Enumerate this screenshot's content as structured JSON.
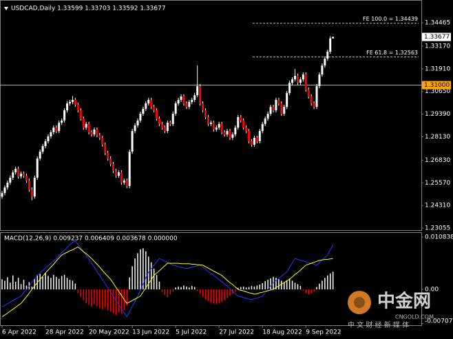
{
  "chart_data": [
    {
      "type": "candlestick",
      "title": "USDCAD,Daily  1.33599 1.33703 1.33592 1.33677",
      "categories": [
        "6 Apr 2022",
        null,
        null,
        null,
        null,
        null,
        null,
        null,
        null,
        null,
        null,
        null,
        null,
        null,
        null,
        null,
        "28 Apr 2022",
        null,
        null,
        null,
        null,
        null,
        null,
        null,
        null,
        null,
        null,
        null,
        null,
        null,
        null,
        null,
        "20 May 2022",
        null,
        null,
        null,
        null,
        null,
        null,
        null,
        null,
        null,
        null,
        null,
        null,
        null,
        null,
        null,
        "13 Jun 2022",
        null,
        null,
        null,
        null,
        null,
        null,
        null,
        null,
        null,
        null,
        null,
        null,
        null,
        null,
        null,
        "5 Jul 2022",
        null,
        null,
        null,
        null,
        null,
        null,
        null,
        null,
        null,
        null,
        null,
        null,
        null,
        null,
        null,
        "27 Jul 2022",
        null,
        null,
        null,
        null,
        null,
        null,
        null,
        null,
        null,
        null,
        null,
        null,
        null,
        null,
        null,
        "18 Aug 2022",
        null,
        null,
        null,
        null,
        null,
        null,
        null,
        null,
        null,
        null,
        null,
        null,
        null,
        null,
        null,
        "9 Sep 2022",
        null,
        null,
        null,
        null,
        null,
        null,
        null,
        null,
        null,
        null
      ],
      "open": [
        1.248,
        1.25,
        1.2531,
        1.2558,
        1.2585,
        1.2615,
        1.2635,
        1.2592,
        1.2608,
        1.2596,
        1.2569,
        1.252,
        1.2481,
        1.2585,
        1.2692,
        1.273,
        1.2761,
        1.2788,
        1.2815,
        1.2838,
        1.2864,
        1.2845,
        1.2891,
        1.2903,
        1.296,
        1.2998,
        1.3006,
        1.3018,
        1.2991,
        1.296,
        1.2914,
        1.2864,
        1.2884,
        1.2838,
        1.2826,
        1.2853,
        1.2822,
        1.2807,
        1.2769,
        1.2723,
        1.2692,
        1.2661,
        1.2623,
        1.2596,
        1.2615,
        1.2558,
        1.2569,
        1.2539,
        1.273,
        1.2845,
        1.2876,
        1.2903,
        1.2941,
        1.2968,
        1.2998,
        1.3018,
        1.2979,
        1.296,
        1.2914,
        1.2884,
        1.2864,
        1.2845,
        1.2891,
        1.2884,
        1.2941,
        1.2998,
        1.3018,
        1.3037,
        1.2998,
        1.2979,
        1.3006,
        1.3018,
        1.3044,
        1.3094,
        1.2998,
        1.296,
        1.2922,
        1.2884,
        1.2891,
        1.2853,
        1.2864,
        1.2884,
        1.2838,
        1.2826,
        1.2845,
        1.2807,
        1.2826,
        1.2864,
        1.2922,
        1.2903,
        1.2864,
        1.2845,
        1.2788,
        1.2769,
        1.2807,
        1.2788,
        1.2845,
        1.2884,
        1.2914,
        1.2941,
        1.2979,
        1.296,
        1.3018,
        1.2998,
        1.2941,
        1.2979,
        1.3056,
        1.3113,
        1.3132,
        1.3152,
        1.3113,
        1.3132,
        1.3159,
        1.3075,
        1.3037,
        1.2998,
        1.2979,
        1.3094,
        1.3159,
        1.3209,
        1.3247,
        1.3286,
        1.33599
      ],
      "high": [
        1.2512,
        1.2543,
        1.257,
        1.2597,
        1.2627,
        1.2647,
        1.2647,
        1.262,
        1.262,
        1.2608,
        1.2581,
        1.2532,
        1.2597,
        1.2704,
        1.2742,
        1.2773,
        1.28,
        1.2827,
        1.285,
        1.2876,
        1.2876,
        1.2903,
        1.2915,
        1.2972,
        1.301,
        1.3018,
        1.304,
        1.303,
        1.3003,
        1.2972,
        1.2926,
        1.2896,
        1.2896,
        1.285,
        1.2865,
        1.2865,
        1.2834,
        1.2819,
        1.2781,
        1.2735,
        1.2704,
        1.2673,
        1.2635,
        1.2627,
        1.2627,
        1.2581,
        1.2581,
        1.2742,
        1.2857,
        1.2888,
        1.2915,
        1.2953,
        1.298,
        1.301,
        1.303,
        1.303,
        1.2991,
        1.2972,
        1.2926,
        1.2896,
        1.2876,
        1.2903,
        1.2903,
        1.2953,
        1.301,
        1.303,
        1.3049,
        1.3049,
        1.301,
        1.3018,
        1.303,
        1.3056,
        1.3209,
        1.3106,
        1.301,
        1.2972,
        1.2934,
        1.2903,
        1.2903,
        1.2876,
        1.2896,
        1.2896,
        1.285,
        1.2857,
        1.2857,
        1.2838,
        1.2876,
        1.2934,
        1.2934,
        1.2915,
        1.2876,
        1.2857,
        1.28,
        1.2819,
        1.2819,
        1.2857,
        1.2896,
        1.2926,
        1.2953,
        1.2991,
        1.2991,
        1.303,
        1.303,
        1.301,
        1.2991,
        1.3068,
        1.3125,
        1.3144,
        1.319,
        1.3164,
        1.3144,
        1.3171,
        1.3171,
        1.3087,
        1.3049,
        1.301,
        1.3106,
        1.3171,
        1.3221,
        1.3259,
        1.3298,
        1.3372,
        1.33703
      ],
      "low": [
        1.2468,
        1.2488,
        1.2519,
        1.2546,
        1.2573,
        1.2603,
        1.258,
        1.258,
        1.2584,
        1.2557,
        1.2508,
        1.246,
        1.2469,
        1.2573,
        1.268,
        1.2718,
        1.2749,
        1.2776,
        1.2803,
        1.2826,
        1.2833,
        1.2833,
        1.2879,
        1.2891,
        1.2948,
        1.2986,
        1.2994,
        1.2979,
        1.2948,
        1.2902,
        1.2852,
        1.2852,
        1.2826,
        1.2814,
        1.2814,
        1.281,
        1.2795,
        1.2757,
        1.2711,
        1.268,
        1.2649,
        1.2611,
        1.2584,
        1.2584,
        1.2546,
        1.2546,
        1.2527,
        1.2527,
        1.2718,
        1.2833,
        1.2864,
        1.2891,
        1.2929,
        1.2956,
        1.2986,
        1.2967,
        1.2948,
        1.2902,
        1.2872,
        1.2852,
        1.2833,
        1.2833,
        1.2872,
        1.2872,
        1.2929,
        1.2986,
        1.3006,
        1.2986,
        1.2967,
        1.2967,
        1.2994,
        1.3006,
        1.3032,
        1.2986,
        1.2948,
        1.291,
        1.2872,
        1.2872,
        1.2841,
        1.2841,
        1.2852,
        1.2826,
        1.2814,
        1.2814,
        1.2795,
        1.2795,
        1.2814,
        1.2852,
        1.2891,
        1.2852,
        1.2833,
        1.2776,
        1.2757,
        1.2757,
        1.2776,
        1.2776,
        1.2833,
        1.2872,
        1.2902,
        1.2929,
        1.2948,
        1.2948,
        1.2986,
        1.2929,
        1.2929,
        1.2967,
        1.3044,
        1.3101,
        1.312,
        1.3101,
        1.3101,
        1.312,
        1.3063,
        1.3025,
        1.2986,
        1.2967,
        1.2967,
        1.3082,
        1.3147,
        1.3197,
        1.3235,
        1.3274,
        1.33592
      ],
      "close": [
        1.25,
        1.2531,
        1.2558,
        1.2585,
        1.2615,
        1.2635,
        1.2592,
        1.2608,
        1.2596,
        1.2569,
        1.252,
        1.2481,
        1.2585,
        1.2692,
        1.273,
        1.2761,
        1.2788,
        1.2815,
        1.2838,
        1.2864,
        1.2845,
        1.2891,
        1.2903,
        1.296,
        1.2998,
        1.3006,
        1.3018,
        1.2991,
        1.296,
        1.2914,
        1.2864,
        1.2884,
        1.2838,
        1.2826,
        1.2853,
        1.2822,
        1.2807,
        1.2769,
        1.2723,
        1.2692,
        1.2661,
        1.2623,
        1.2596,
        1.2615,
        1.2558,
        1.2569,
        1.2539,
        1.273,
        1.2845,
        1.2876,
        1.2903,
        1.2941,
        1.2968,
        1.2998,
        1.3018,
        1.2979,
        1.296,
        1.2914,
        1.2884,
        1.2864,
        1.2845,
        1.2891,
        1.2884,
        1.2941,
        1.2998,
        1.3018,
        1.3037,
        1.2998,
        1.2979,
        1.3006,
        1.3018,
        1.3044,
        1.3094,
        1.2998,
        1.296,
        1.2922,
        1.2884,
        1.2891,
        1.2853,
        1.2864,
        1.2884,
        1.2838,
        1.2826,
        1.2845,
        1.2807,
        1.2826,
        1.2864,
        1.2922,
        1.2903,
        1.2864,
        1.2845,
        1.2788,
        1.2769,
        1.2807,
        1.2788,
        1.2845,
        1.2884,
        1.2914,
        1.2941,
        1.2979,
        1.296,
        1.3018,
        1.2998,
        1.2941,
        1.2979,
        1.3056,
        1.3113,
        1.3132,
        1.3152,
        1.3113,
        1.3132,
        1.3159,
        1.3075,
        1.3037,
        1.2998,
        1.2979,
        1.3094,
        1.3159,
        1.3209,
        1.3247,
        1.3286,
        1.33599,
        1.33677
      ],
      "up_color": "#ffffff",
      "down_color": "#ff0000",
      "ylim": [
        1.2294,
        1.3554
      ],
      "yticks": [
        1.34465,
        {
          "value": 1.3317,
          "label": "1.33170"
        },
        {
          "value": 1.3191,
          "label": "1.31910"
        },
        {
          "value": 1.3065,
          "label": "1.30650"
        },
        {
          "value": 1.2939,
          "label": "1.29390"
        },
        {
          "value": 1.2813,
          "label": "1.28130"
        },
        {
          "value": 1.2683,
          "label": "1.26830"
        },
        {
          "value": 1.2557,
          "label": "1.25570"
        },
        {
          "value": 1.2431,
          "label": "1.24310"
        },
        1.23055
      ],
      "last_price": 1.33677,
      "hline": {
        "value": 1.31,
        "label": "1.31000",
        "color": "#ffa500"
      },
      "levels": [
        {
          "value": 1.34439,
          "label": "FE 100.0 = 1.34439"
        },
        {
          "value": 1.32563,
          "label": "FE 61.8 = 1.32563"
        }
      ]
    },
    {
      "type": "macd",
      "title": "MACD(12,26,9) 0.009237 0.006409 0.003678 0.000000",
      "ylim": [
        -0.007072,
        0.010838
      ],
      "yticks": [
        0.010838,
        {
          "value": 0,
          "label": "0.00"
        },
        -0.007072
      ],
      "histogram": {
        "up_color": "#ffffff",
        "down_color": "#ff0000",
        "values": [
          0.0021,
          0.0018,
          0.0025,
          0.0014,
          0.0029,
          0.0016,
          0.0024,
          0.0011,
          0.002,
          0.0008,
          0.0015,
          0.0006,
          0.0022,
          0.003,
          0.0032,
          0.0026,
          0.0034,
          0.0028,
          0.0024,
          0.003,
          0.0026,
          0.0022,
          0.0028,
          0.003,
          0.0024,
          0.002,
          0.0018,
          0.0012,
          -0.0008,
          -0.0016,
          -0.0022,
          -0.0029,
          -0.0032,
          -0.0036,
          -0.003,
          -0.0035,
          -0.0038,
          -0.0041,
          -0.0037,
          -0.0043,
          -0.0046,
          -0.0049,
          -0.0053,
          -0.0048,
          -0.005,
          -0.0042,
          -0.0034,
          0.0025,
          0.0048,
          0.0064,
          0.0075,
          0.0083,
          0.0085,
          0.0079,
          0.0068,
          0.0056,
          0.0043,
          0.003,
          0.0016,
          -0.0006,
          -0.0012,
          -0.0016,
          -0.001,
          -0.0005,
          0.0004,
          0.0006,
          0.0005,
          0.0008,
          0.0006,
          0.0004,
          0.0007,
          0.0005,
          -0.0003,
          -0.0009,
          -0.0015,
          -0.002,
          -0.0024,
          -0.0027,
          -0.0029,
          -0.003,
          -0.0028,
          -0.0026,
          -0.0022,
          -0.0018,
          -0.0013,
          -0.0009,
          -0.0005,
          0.0003,
          0.0005,
          0.0006,
          0.0004,
          0.0005,
          0.0007,
          0.0006,
          0.0008,
          0.001,
          0.0013,
          0.0017,
          0.002,
          0.0023,
          0.0026,
          0.0024,
          0.0021,
          0.0018,
          0.0015,
          0.0019,
          0.0022,
          0.0018,
          0.0014,
          0.0011,
          0.0007,
          -0.0003,
          -0.0007,
          -0.001,
          -0.0008,
          -0.0004,
          0.0005,
          0.0012,
          0.0018,
          0.0024,
          0.0029,
          0.0033,
          0.003678
        ]
      },
      "main": {
        "color": "#1f3cff",
        "values": [
          -0.0036,
          -0.0033,
          -0.003,
          -0.0027,
          -0.0023,
          -0.002,
          -0.0017,
          -0.0014,
          -0.0007,
          0.0,
          0.0007,
          0.0015,
          0.0022,
          0.0029,
          0.0034,
          0.0039,
          0.0044,
          0.0049,
          0.0054,
          0.0059,
          0.0064,
          0.007,
          0.0076,
          0.0081,
          0.0087,
          0.0093,
          0.0097,
          0.01,
          0.0093,
          0.0086,
          0.0078,
          0.0071,
          0.0063,
          0.0054,
          0.0046,
          0.0037,
          0.0029,
          0.002,
          0.0012,
          0.0003,
          -0.0005,
          -0.0014,
          -0.0023,
          -0.0031,
          -0.004,
          -0.0048,
          -0.0057,
          -0.0046,
          -0.0035,
          -0.0025,
          -0.0014,
          -0.0002,
          0.0011,
          0.0024,
          0.0036,
          0.0043,
          0.005,
          0.0057,
          0.0064,
          0.0061,
          0.0058,
          0.0056,
          0.0053,
          0.005,
          0.0049,
          0.0047,
          0.0046,
          0.0044,
          0.0043,
          0.0044,
          0.0046,
          0.0047,
          0.0049,
          0.005,
          0.0046,
          0.0042,
          0.0037,
          0.0033,
          0.0029,
          0.0025,
          0.002,
          0.0016,
          0.0011,
          0.0007,
          0.0002,
          -0.0004,
          -0.0009,
          -0.0014,
          -0.0015,
          -0.0017,
          -0.0018,
          -0.002,
          -0.0021,
          -0.0019,
          -0.0018,
          -0.0016,
          -0.0014,
          -0.0007,
          0.0,
          0.0007,
          0.0014,
          0.0018,
          0.0023,
          0.0027,
          0.0032,
          0.0036,
          0.0045,
          0.0055,
          0.0064,
          0.0062,
          0.006,
          0.0059,
          0.0057,
          0.0055,
          0.0054,
          0.0052,
          0.005,
          0.0055,
          0.0061,
          0.0066,
          0.0071,
          0.0082,
          0.009237
        ]
      },
      "signal": {
        "color": "#ffff00",
        "values": [
          -0.0057,
          -0.0053,
          -0.0049,
          -0.0045,
          -0.0041,
          -0.0037,
          -0.0033,
          -0.0029,
          -0.0022,
          -0.0015,
          -0.0008,
          0.0,
          0.0007,
          0.0014,
          0.0021,
          0.0027,
          0.0034,
          0.004,
          0.0046,
          0.0052,
          0.0059,
          0.0065,
          0.0071,
          0.0074,
          0.0077,
          0.008,
          0.0082,
          0.0085,
          0.0088,
          0.0083,
          0.0078,
          0.0074,
          0.0069,
          0.0064,
          0.0058,
          0.0052,
          0.0046,
          0.0039,
          0.0033,
          0.0027,
          0.0021,
          0.0013,
          0.0004,
          -0.0004,
          -0.0012,
          -0.0021,
          -0.0029,
          -0.0026,
          -0.0023,
          -0.002,
          -0.0017,
          -0.0014,
          -0.0005,
          0.0003,
          0.0012,
          0.002,
          0.0029,
          0.0034,
          0.0039,
          0.0044,
          0.0049,
          0.0054,
          0.0054,
          0.0054,
          0.0054,
          0.0054,
          0.0053,
          0.0053,
          0.0053,
          0.0053,
          0.0052,
          0.0052,
          0.0051,
          0.0051,
          0.005,
          0.0047,
          0.0044,
          0.0041,
          0.0038,
          0.0035,
          0.0032,
          0.0029,
          0.0024,
          0.0019,
          0.0014,
          0.001,
          0.0005,
          0.0,
          -0.0002,
          -0.0003,
          -0.0005,
          -0.0007,
          -0.0008,
          -0.001,
          -0.0009,
          -0.0007,
          -0.0006,
          -0.0004,
          -0.0003,
          -0.0001,
          0.0,
          0.0004,
          0.0007,
          0.0011,
          0.0014,
          0.0018,
          0.0021,
          0.0026,
          0.0031,
          0.0035,
          0.004,
          0.0045,
          0.005,
          0.0052,
          0.0054,
          0.0056,
          0.0058,
          0.006,
          0.0061,
          0.0062,
          0.0062,
          0.0063,
          0.006409
        ]
      }
    }
  ],
  "watermark": {
    "brand": "中金网",
    "site": "CNGOLD.COM",
    "tagline": "中 文 财 经 新 媒 体"
  }
}
